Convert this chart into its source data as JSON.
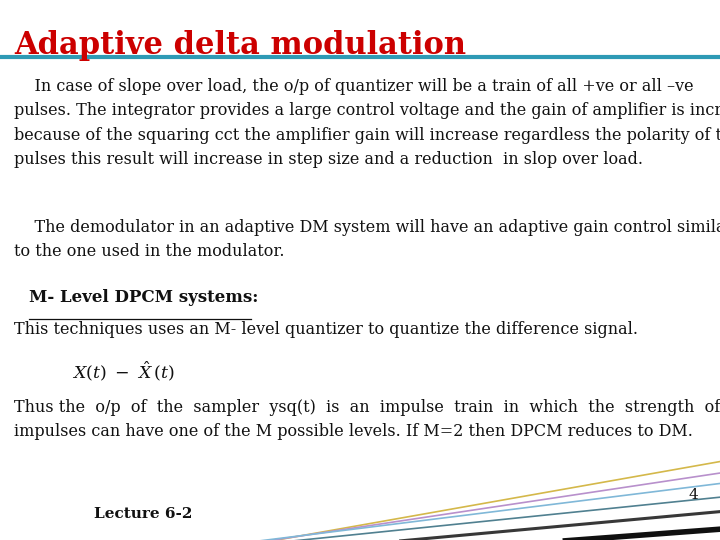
{
  "title": "Adaptive delta modulation",
  "title_color": "#cc0000",
  "title_fontsize": 22,
  "separator_color": "#2e9ab5",
  "separator_linewidth": 3,
  "background_color": "#ffffff",
  "body_fontsize": 11.5,
  "body_color": "#111111",
  "body_font": "serif",
  "paragraph1": "    In case of slope over load, the o/p of quantizer will be a train of all +ve or all –ve\npulses. The integrator provides a large control voltage and the gain of amplifier is increase\nbecause of the squaring cct the amplifier gain will increase regardless the polarity of the\npulses this result will increase in step size and a reduction  in slop over load.",
  "paragraph2": "    The demodulator in an adaptive DM system will have an adaptive gain control similar\nto the one used in the modulator.",
  "section_heading": "M- Level DPCM systems:",
  "paragraph3": "This techniques uses an M- level quantizer to quantize the difference signal.",
  "paragraph4": "Thus the  o/p  of  the  sampler  ysq(t)  is  an  impulse  train  in  which  the  strength  of  the\nimpulses can have one of the M possible levels. If M=2 then DPCM reduces to DM.",
  "page_number": "4",
  "footer_text": "Lecture 6-2",
  "footer_fontsize": 11,
  "page_num_fontsize": 11
}
